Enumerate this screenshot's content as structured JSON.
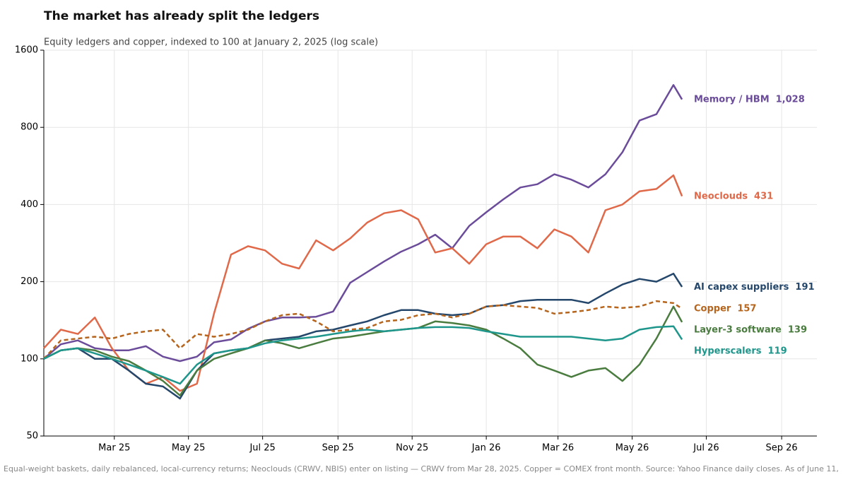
{
  "chart_data": {
    "type": "line",
    "title": "The market has already split the ledgers",
    "subtitle": "Equity ledgers and copper, indexed to 100 at January 2, 2025 (log scale)",
    "footnote": "Equal-weight baskets, daily rebalanced, local-currency returns; Neoclouds (CRWV, NBIS) enter on listing — CRWV from Mar 28, 2025. Copper = COMEX front month. Source: Yahoo Finance daily closes. As of June 11,",
    "log_scale": true,
    "grid": true,
    "xlim": [
      1,
      637
    ],
    "xticks": [
      {
        "value": 59,
        "label": "Mar 25"
      },
      {
        "value": 120,
        "label": "May 25"
      },
      {
        "value": 181,
        "label": "Jul 25"
      },
      {
        "value": 243,
        "label": "Sep 25"
      },
      {
        "value": 304,
        "label": "Nov 25"
      },
      {
        "value": 365,
        "label": "Jan 26"
      },
      {
        "value": 424,
        "label": "Mar 26"
      },
      {
        "value": 485,
        "label": "May 26"
      },
      {
        "value": 546,
        "label": "Jul 26"
      },
      {
        "value": 608,
        "label": "Sep 26"
      }
    ],
    "ylim": [
      50,
      1600
    ],
    "yticks": [
      50,
      100,
      200,
      400,
      800,
      1600
    ],
    "x": [
      1,
      15,
      29,
      43,
      57,
      71,
      85,
      99,
      113,
      127,
      141,
      155,
      169,
      183,
      197,
      211,
      225,
      239,
      253,
      267,
      281,
      295,
      309,
      323,
      337,
      351,
      365,
      379,
      393,
      407,
      421,
      435,
      449,
      463,
      477,
      491,
      505,
      519,
      526
    ],
    "series": [
      {
        "name": "Memory / HBM",
        "color": "#6b4c9a",
        "values": [
          100,
          114,
          118,
          110,
          108,
          108,
          112,
          102,
          98,
          102,
          116,
          119,
          131,
          140,
          145,
          145,
          146,
          153,
          198,
          218,
          240,
          262,
          280,
          305,
          270,
          330,
          373,
          419,
          466,
          480,
          525,
          500,
          466,
          525,
          640,
          850,
          900,
          1170,
          1028
        ],
        "value_labels": [
          null,
          null,
          null,
          null,
          null,
          null,
          null,
          null,
          null,
          null,
          null,
          null,
          null,
          null,
          null,
          null,
          null,
          null,
          null,
          null,
          null,
          null,
          null,
          null,
          null,
          null,
          null,
          null,
          null,
          null,
          null,
          null,
          null,
          null,
          null,
          null,
          null,
          null,
          "1,028"
        ]
      },
      {
        "name": "Neoclouds",
        "color": "#e0694a",
        "values": [
          110,
          130,
          125,
          145,
          110,
          90,
          80,
          85,
          75,
          80,
          150,
          255,
          275,
          265,
          235,
          225,
          290,
          265,
          295,
          340,
          370,
          380,
          350,
          260,
          270,
          235,
          280,
          300,
          300,
          270,
          320,
          300,
          260,
          380,
          400,
          450,
          460,
          520,
          431
        ]
      },
      {
        "name": "AI capex suppliers",
        "color": "#24476b",
        "values": [
          100,
          108,
          110,
          100,
          100,
          90,
          80,
          78,
          70,
          90,
          105,
          108,
          110,
          118,
          120,
          122,
          128,
          130,
          135,
          140,
          148,
          155,
          155,
          150,
          148,
          150,
          160,
          162,
          168,
          170,
          170,
          170,
          165,
          180,
          195,
          205,
          200,
          215,
          191
        ]
      },
      {
        "name": "Copper",
        "color": "#b5651d",
        "dashed": true,
        "values": [
          100,
          118,
          120,
          122,
          120,
          125,
          128,
          130,
          110,
          125,
          122,
          125,
          130,
          140,
          148,
          150,
          140,
          128,
          130,
          132,
          140,
          142,
          148,
          150,
          145,
          150,
          160,
          162,
          160,
          158,
          150,
          152,
          155,
          160,
          158,
          160,
          168,
          165,
          157
        ]
      },
      {
        "name": "Layer-3 software",
        "color": "#4a7c3f",
        "values": [
          100,
          108,
          110,
          108,
          102,
          98,
          90,
          82,
          72,
          90,
          100,
          105,
          110,
          118,
          115,
          110,
          115,
          120,
          122,
          125,
          128,
          130,
          132,
          140,
          138,
          135,
          130,
          120,
          110,
          95,
          90,
          85,
          90,
          92,
          82,
          95,
          120,
          160,
          139
        ]
      },
      {
        "name": "Hyperscalers",
        "color": "#1f968b",
        "values": [
          100,
          108,
          110,
          105,
          100,
          95,
          90,
          85,
          80,
          95,
          105,
          108,
          110,
          115,
          118,
          120,
          122,
          125,
          128,
          130,
          128,
          130,
          132,
          133,
          133,
          132,
          128,
          125,
          122,
          122,
          122,
          122,
          120,
          118,
          120,
          130,
          133,
          134,
          119
        ]
      }
    ]
  }
}
